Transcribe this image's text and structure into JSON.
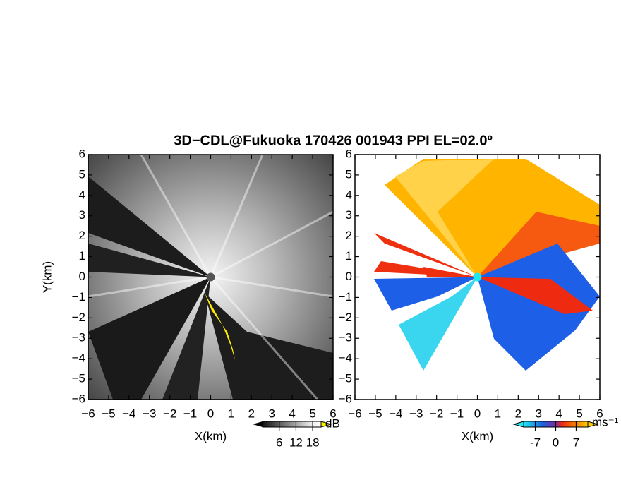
{
  "title": "3D−CDL@Fukuoka 170426 001943 PPI EL=02.0º",
  "chart_data": [
    {
      "type": "image",
      "xlabel": "X(km)",
      "ylabel": "Y(km)",
      "xlim": [
        -6,
        6
      ],
      "ylim": [
        -6,
        6
      ],
      "xticks": [
        {
          "value": -6,
          "label": "−6"
        },
        {
          "value": -5,
          "label": "−5"
        },
        {
          "value": -4,
          "label": "−4"
        },
        {
          "value": -3,
          "label": "−3"
        },
        {
          "value": -2,
          "label": "−2"
        },
        {
          "value": -1,
          "label": "−1"
        },
        0,
        1,
        2,
        3,
        4,
        5,
        6
      ],
      "yticks": [
        {
          "value": -6,
          "label": "−6"
        },
        {
          "value": -5,
          "label": "−5"
        },
        {
          "value": -4,
          "label": "−4"
        },
        {
          "value": -3,
          "label": "−3"
        },
        {
          "value": -2,
          "label": "−2"
        },
        {
          "value": -1,
          "label": "−1"
        },
        0,
        1,
        2,
        3,
        4,
        5,
        6
      ],
      "colorbar": {
        "clim": [
          0,
          21
        ],
        "ticks": [
          6,
          12,
          18
        ],
        "unit": "dB"
      }
    },
    {
      "type": "image",
      "xlabel": "X(km)",
      "xlim": [
        -6,
        6
      ],
      "ylim": [
        -6,
        6
      ],
      "xticks": [
        {
          "value": -6,
          "label": "−6"
        },
        {
          "value": -5,
          "label": "−5"
        },
        {
          "value": -4,
          "label": "−4"
        },
        {
          "value": -3,
          "label": "−3"
        },
        {
          "value": -2,
          "label": "−2"
        },
        {
          "value": -1,
          "label": "−1"
        },
        0,
        1,
        2,
        3,
        4,
        5,
        6
      ],
      "yticks": [
        {
          "value": -6,
          "label": "−6"
        },
        {
          "value": -5,
          "label": "−5"
        },
        {
          "value": -4,
          "label": "−4"
        },
        {
          "value": -3,
          "label": "−3"
        },
        {
          "value": -2,
          "label": "−2"
        },
        {
          "value": -1,
          "label": "−1"
        },
        0,
        1,
        2,
        3,
        4,
        5,
        6
      ],
      "colorbar": {
        "clim": [
          -11,
          11
        ],
        "ticks": [
          -7,
          0,
          7
        ],
        "unit": "ms⁻¹"
      }
    }
  ]
}
